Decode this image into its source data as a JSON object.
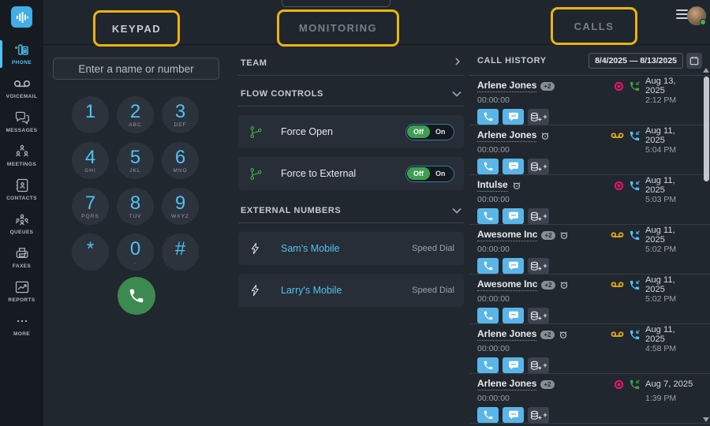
{
  "colors": {
    "accent_blue": "#4fc3f7",
    "highlight_yellow": "#edb30d",
    "toggle_green": "#3f9e52",
    "call_button_green": "#3c8a50",
    "record_pink": "#e8146e",
    "voicemail_yellow": "#e5a812"
  },
  "sidebar": {
    "items": [
      {
        "label": "PHONE",
        "icon": "phone-icon",
        "active": true
      },
      {
        "label": "VOICEMAIL",
        "icon": "voicemail-icon",
        "active": false
      },
      {
        "label": "MESSAGES",
        "icon": "messages-icon",
        "active": false
      },
      {
        "label": "MEETINGS",
        "icon": "meetings-icon",
        "active": false
      },
      {
        "label": "CONTACTS",
        "icon": "contacts-icon",
        "active": false
      },
      {
        "label": "QUEUES",
        "icon": "queues-icon",
        "active": false
      },
      {
        "label": "FAXES",
        "icon": "faxes-icon",
        "active": false
      },
      {
        "label": "REPORTS",
        "icon": "reports-icon",
        "active": false
      },
      {
        "label": "MORE",
        "icon": "more-icon",
        "active": false
      }
    ]
  },
  "header": {
    "tabs": [
      {
        "label": "KEYPAD",
        "active": true
      },
      {
        "label": "MONITORING",
        "active": false
      },
      {
        "label": "CALLS",
        "active": false
      }
    ]
  },
  "keypad": {
    "placeholder": "Enter a name or number",
    "keys": [
      {
        "digit": "1",
        "letters": ""
      },
      {
        "digit": "2",
        "letters": "ABC"
      },
      {
        "digit": "3",
        "letters": "DEF"
      },
      {
        "digit": "4",
        "letters": "GHI"
      },
      {
        "digit": "5",
        "letters": "JKL"
      },
      {
        "digit": "6",
        "letters": "MNO"
      },
      {
        "digit": "7",
        "letters": "PQRS"
      },
      {
        "digit": "8",
        "letters": "TUV"
      },
      {
        "digit": "9",
        "letters": "WXYZ"
      },
      {
        "digit": "*",
        "letters": ""
      },
      {
        "digit": "0",
        "letters": "."
      },
      {
        "digit": "#",
        "letters": ""
      }
    ]
  },
  "monitoring": {
    "team": {
      "title": "TEAM",
      "chevron": "right"
    },
    "flow_controls": {
      "title": "FLOW CONTROLS",
      "chevron": "down",
      "items": [
        {
          "label": "Force Open",
          "toggle_off": "Off",
          "toggle_on": "On",
          "state": "off"
        },
        {
          "label": "Force to External",
          "toggle_off": "Off",
          "toggle_on": "On",
          "state": "off"
        }
      ]
    },
    "external_numbers": {
      "title": "EXTERNAL NUMBERS",
      "chevron": "down",
      "items": [
        {
          "name": "Sam's Mobile",
          "right_label": "Speed Dial"
        },
        {
          "name": "Larry's Mobile",
          "right_label": "Speed Dial"
        }
      ]
    }
  },
  "calls": {
    "title": "CALL HISTORY",
    "date_range": "8/4/2025 — 8/13/2025",
    "entries": [
      {
        "name": "Arlene Jones",
        "badge": "+2",
        "alarm": false,
        "media_icon": "record-icon",
        "call_icon": "call-incoming-green-icon",
        "date": "Aug 13, 2025",
        "time": "2:12 PM",
        "duration": "00:00:00"
      },
      {
        "name": "Arlene Jones",
        "badge": null,
        "alarm": true,
        "media_icon": "voicemail-icon",
        "call_icon": "call-incoming-blue-icon",
        "date": "Aug 11, 2025",
        "time": "5:04 PM",
        "duration": "00:00:00"
      },
      {
        "name": "Intulse",
        "badge": null,
        "alarm": true,
        "media_icon": "record-icon",
        "call_icon": "call-incoming-blue-icon",
        "date": "Aug 11, 2025",
        "time": "5:03 PM",
        "duration": "00:00:00"
      },
      {
        "name": "Awesome Inc",
        "badge": "+2",
        "alarm": true,
        "media_icon": "voicemail-icon",
        "call_icon": "call-incoming-blue-icon",
        "date": "Aug 11, 2025",
        "time": "5:02 PM",
        "duration": "00:00:00"
      },
      {
        "name": "Awesome Inc",
        "badge": "+2",
        "alarm": true,
        "media_icon": "voicemail-icon",
        "call_icon": "call-incoming-blue-icon",
        "date": "Aug 11, 2025",
        "time": "5:02 PM",
        "duration": "00:00:00"
      },
      {
        "name": "Arlene Jones",
        "badge": "+2",
        "alarm": true,
        "media_icon": "voicemail-icon",
        "call_icon": "call-incoming-blue-icon",
        "date": "Aug 11, 2025",
        "time": "4:58 PM",
        "duration": "00:00:00"
      },
      {
        "name": "Arlene Jones",
        "badge": "+2",
        "alarm": false,
        "media_icon": "record-icon",
        "call_icon": "call-incoming-green-icon",
        "date": "Aug 7, 2025",
        "time": "1:39 PM",
        "duration": "00:00:00"
      }
    ]
  }
}
